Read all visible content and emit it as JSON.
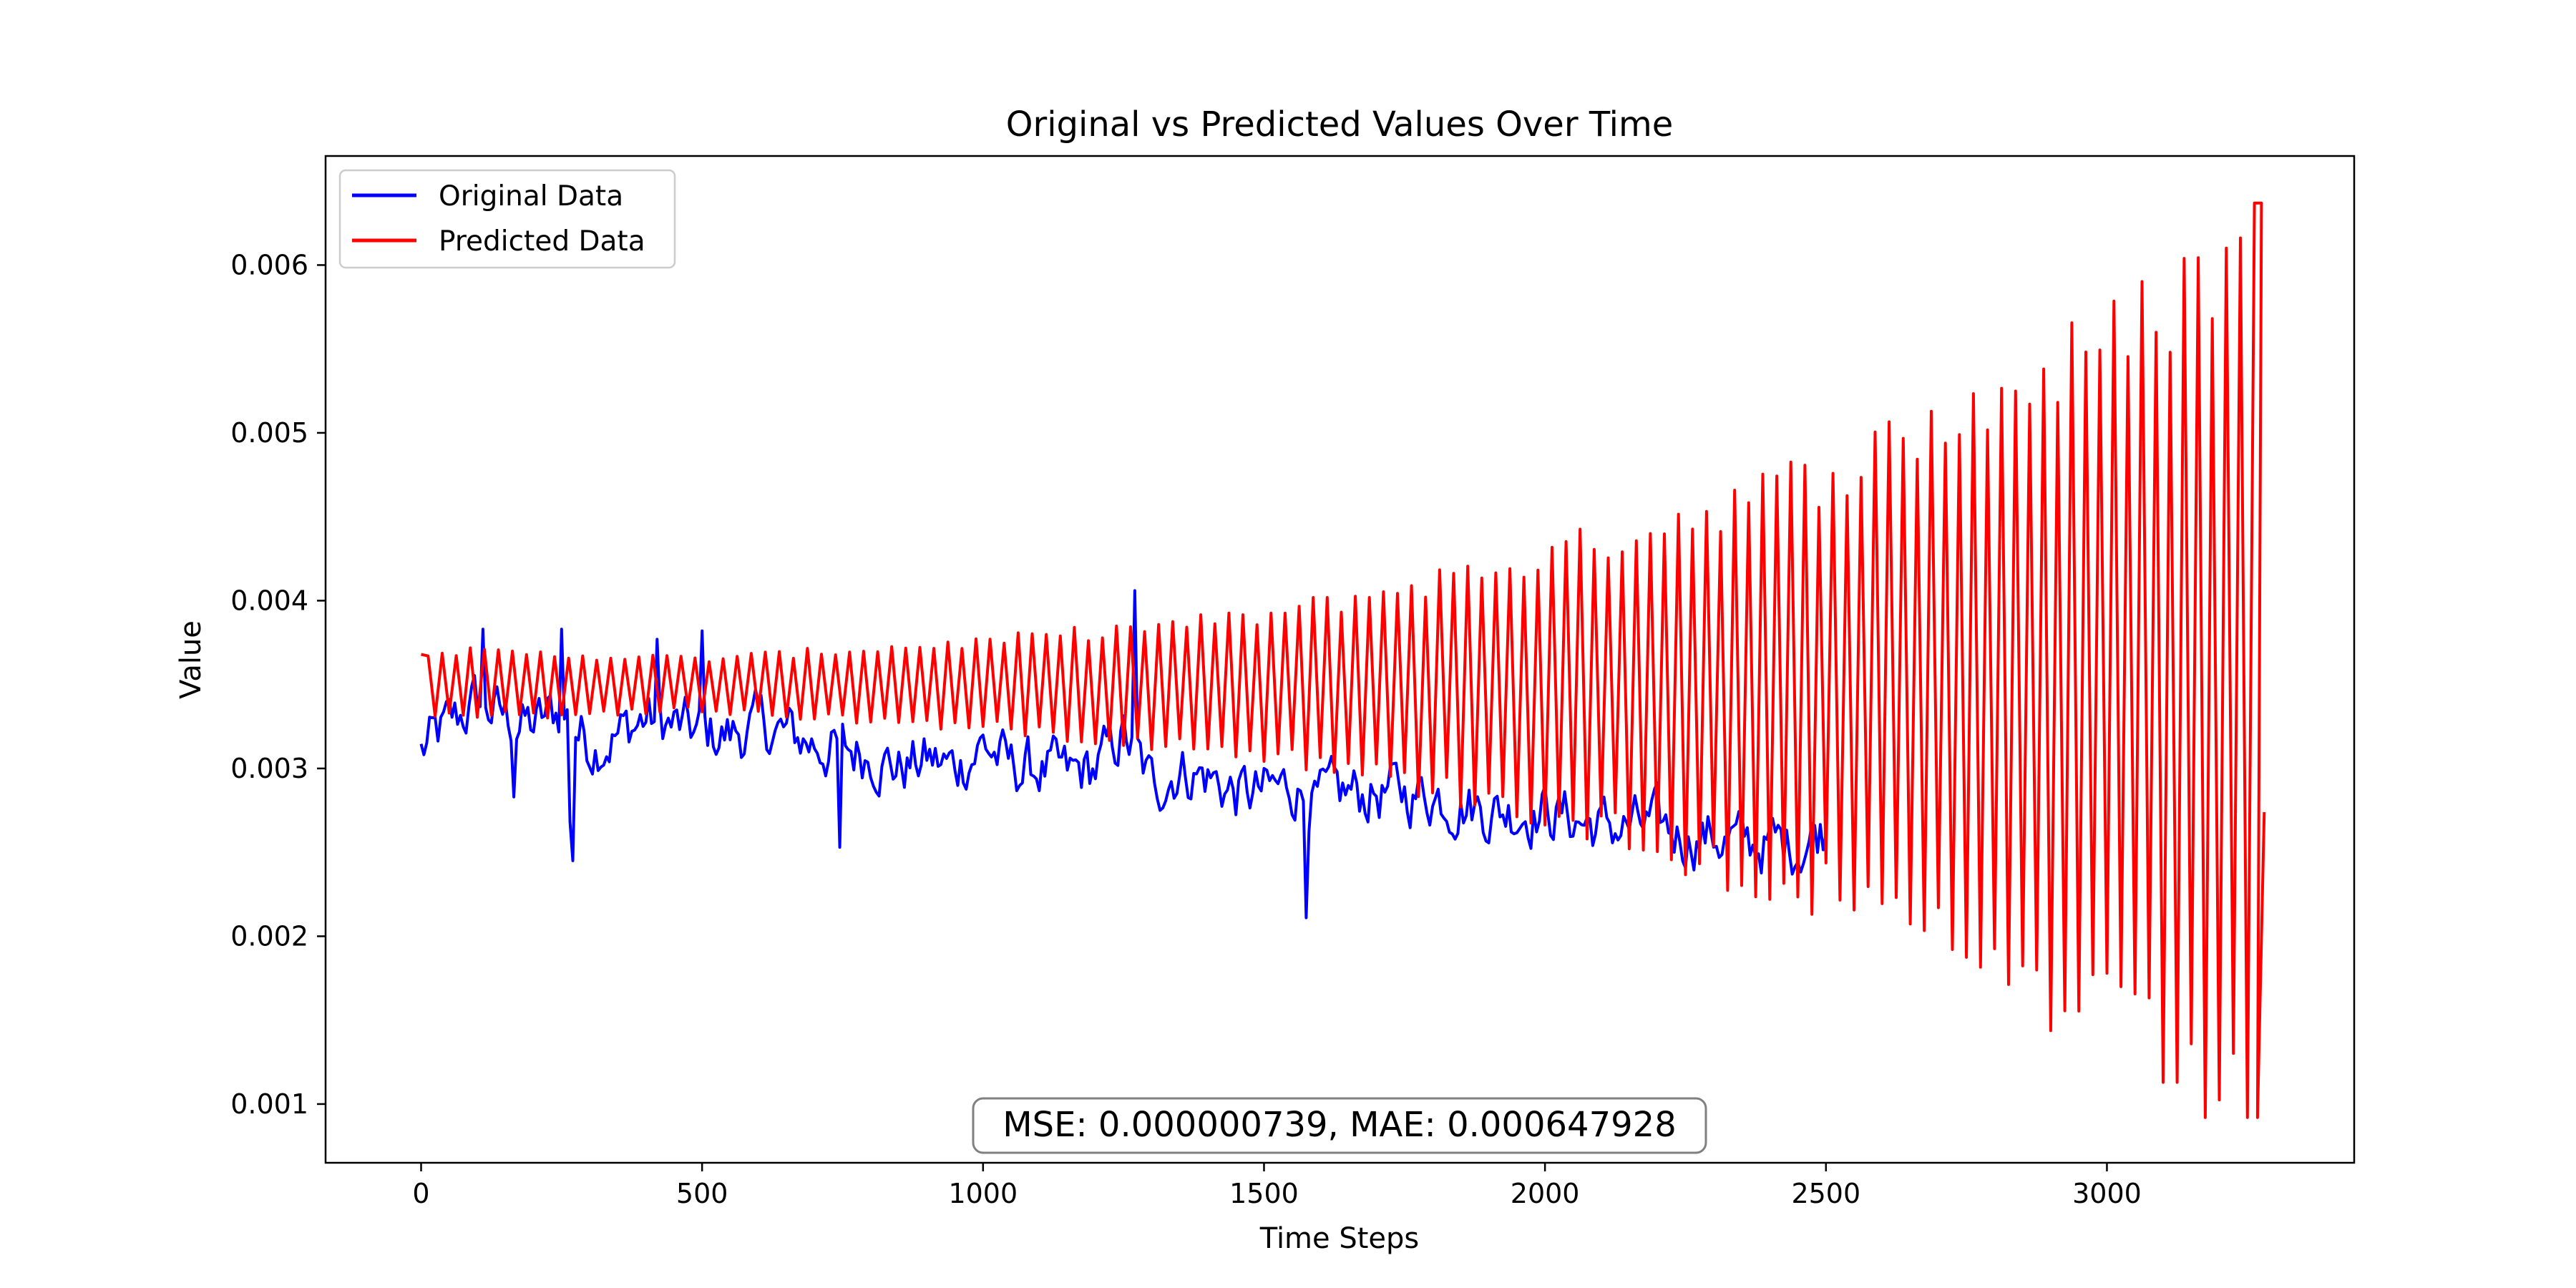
{
  "chart_data": {
    "type": "line",
    "title": "Original vs Predicted Values Over Time",
    "xlabel": "Time Steps",
    "ylabel": "Value",
    "xlim": [
      -170,
      3440
    ],
    "ylim": [
      0.00065,
      0.00665
    ],
    "x_ticks": [
      0,
      500,
      1000,
      1500,
      2000,
      2500,
      3000
    ],
    "x_tick_labels": [
      "0",
      "500",
      "1000",
      "1500",
      "2000",
      "2500",
      "3000"
    ],
    "y_ticks": [
      0.001,
      0.002,
      0.003,
      0.004,
      0.005,
      0.006
    ],
    "y_tick_labels": [
      "0.001",
      "0.002",
      "0.003",
      "0.004",
      "0.005",
      "0.006"
    ],
    "grid": false,
    "legend_position": "top-left",
    "annotation": "MSE: 0.000000739, MAE: 0.000647928",
    "series": [
      {
        "name": "Original Data",
        "color": "#0000ff",
        "x_range": [
          0,
          2500
        ],
        "trend_points": [
          [
            0,
            0.0031
          ],
          [
            50,
            0.00325
          ],
          [
            100,
            0.0034
          ],
          [
            150,
            0.0033
          ],
          [
            200,
            0.00325
          ],
          [
            250,
            0.00335
          ],
          [
            300,
            0.00315
          ],
          [
            350,
            0.0032
          ],
          [
            400,
            0.0033
          ],
          [
            450,
            0.00325
          ],
          [
            500,
            0.0032
          ],
          [
            550,
            0.0032
          ],
          [
            600,
            0.00325
          ],
          [
            650,
            0.0032
          ],
          [
            700,
            0.00315
          ],
          [
            750,
            0.0031
          ],
          [
            800,
            0.0031
          ],
          [
            850,
            0.003
          ],
          [
            900,
            0.00305
          ],
          [
            950,
            0.003
          ],
          [
            1000,
            0.00315
          ],
          [
            1050,
            0.003
          ],
          [
            1100,
            0.003
          ],
          [
            1150,
            0.00295
          ],
          [
            1200,
            0.003
          ],
          [
            1250,
            0.0032
          ],
          [
            1300,
            0.0029
          ],
          [
            1350,
            0.003
          ],
          [
            1400,
            0.00295
          ],
          [
            1450,
            0.00285
          ],
          [
            1500,
            0.00285
          ],
          [
            1550,
            0.0029
          ],
          [
            1600,
            0.0028
          ],
          [
            1650,
            0.00285
          ],
          [
            1700,
            0.00285
          ],
          [
            1750,
            0.00285
          ],
          [
            1800,
            0.00285
          ],
          [
            1850,
            0.0028
          ],
          [
            1900,
            0.00275
          ],
          [
            1950,
            0.00275
          ],
          [
            2000,
            0.00275
          ],
          [
            2050,
            0.0027
          ],
          [
            2100,
            0.00265
          ],
          [
            2150,
            0.00265
          ],
          [
            2200,
            0.00265
          ],
          [
            2250,
            0.0026
          ],
          [
            2300,
            0.0026
          ],
          [
            2350,
            0.00255
          ],
          [
            2400,
            0.00255
          ],
          [
            2450,
            0.00255
          ],
          [
            2500,
            0.00265
          ]
        ],
        "spikes": [
          [
            110,
            0.00383
          ],
          [
            165,
            0.00283
          ],
          [
            250,
            0.00383
          ],
          [
            265,
            0.00268
          ],
          [
            270,
            0.00245
          ],
          [
            420,
            0.00377
          ],
          [
            500,
            0.00382
          ],
          [
            745,
            0.00253
          ],
          [
            1270,
            0.00406
          ],
          [
            1575,
            0.00211
          ]
        ]
      },
      {
        "name": "Predicted Data",
        "color": "#ff0000",
        "x_range": [
          0,
          3280
        ],
        "center": 0.0035,
        "amplitude_points": [
          [
            0,
            0.0002
          ],
          [
            500,
            0.00015
          ],
          [
            1000,
            0.00025
          ],
          [
            1500,
            0.0004
          ],
          [
            2000,
            0.00075
          ],
          [
            2500,
            0.00125
          ],
          [
            3000,
            0.002
          ],
          [
            3280,
            0.0027
          ]
        ],
        "period": 25,
        "start_value": 0.00368,
        "end_value": 0.00274,
        "max_value": 0.00637,
        "min_value": 0.00092
      }
    ]
  }
}
